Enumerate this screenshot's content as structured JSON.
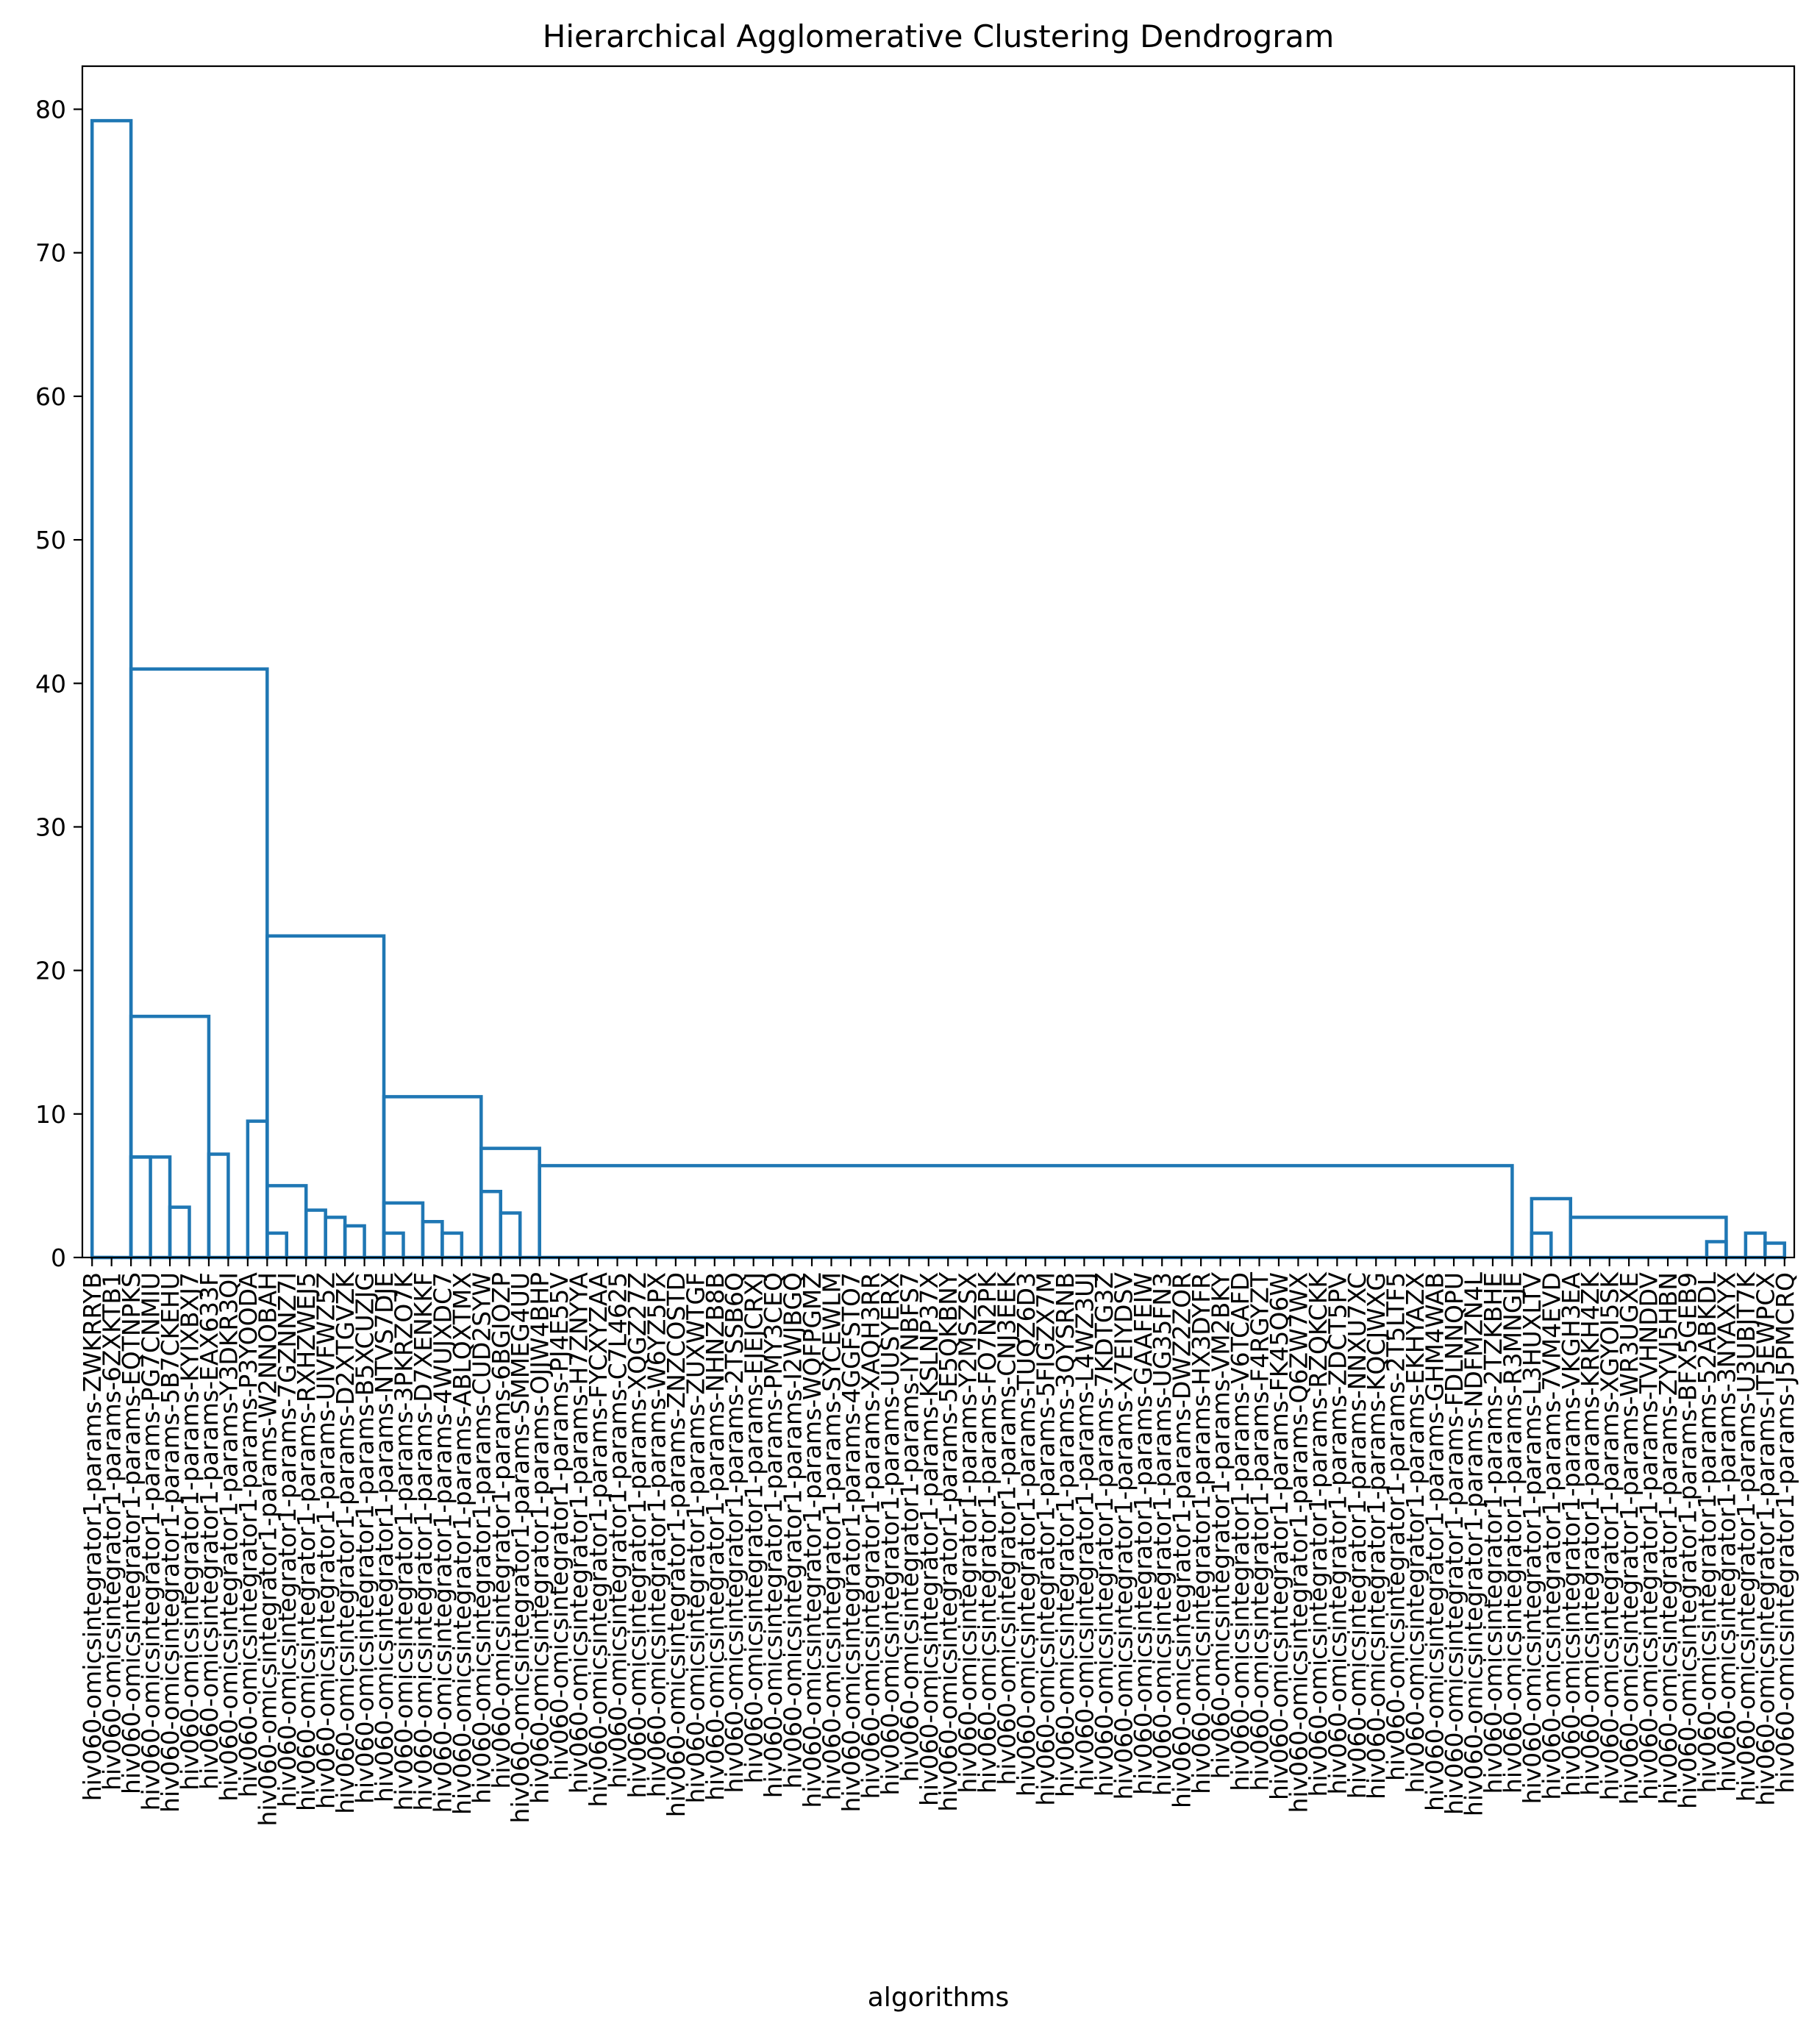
{
  "chart_data": {
    "type": "dendrogram",
    "title": "Hierarchical Agglomerative Clustering Dendrogram",
    "xlabel": "algorithms",
    "ylabel": "",
    "ylim": [
      0,
      83
    ],
    "yticks": [
      0,
      10,
      20,
      30,
      40,
      50,
      60,
      70,
      80
    ],
    "grid": false,
    "link_color": "#1f77b4",
    "leaves": [
      "hiv060-omicsintegrator1-params-ZWKRRYB",
      "hiv060-omicsintegrator1-params-6ZXKTB1",
      "hiv060-omicsintegrator1-params-EQTNPKS",
      "hiv060-omicsintegrator1-params-PG7CNMIU",
      "hiv060-omicsintegrator1-params-5B7CKEHU",
      "hiv060-omicsintegrator1-params-KYIXBXJ7",
      "hiv060-omicsintegrator1-params-EAX633F",
      "hiv060-omicsintegrator1-params-Y3DKR3QI",
      "hiv060-omicsintegrator1-params-P3YOODA",
      "hiv060-omicsintegrator1-params-W2NNOBAH",
      "hiv060-omicsintegrator1-params-7GZNNZ7I",
      "hiv060-omicsintegrator1-params-RXHZWEJ5",
      "hiv060-omicsintegrator1-params-UIVFWZ5Z",
      "hiv060-omicsintegrator1-params-D2XTGVZK",
      "hiv060-omicsintegrator1-params-B5XCUZJG",
      "hiv060-omicsintegrator1-params-NTVS7DJE",
      "hiv060-omicsintegrator1-params-3PKRZO7K",
      "hiv060-omicsintegrator1-params-D7XENKKF",
      "hiv060-omicsintegrator1-params-4WUJXDC7",
      "hiv060-omicsintegrator1-params-ABLQXTMX",
      "hiv060-omicsintegrator1-params-CUD2SYW",
      "hiv060-omicsintegrator1-params-6BGIOZP",
      "hiv060-omicsintegrator1-params-SMMEG4UU",
      "hiv060-omicsintegrator1-params-OJJW4BHP",
      "hiv060-omicsintegrator1-params-PJ4E55V",
      "hiv060-omicsintegrator1-params-H7ZNYYA",
      "hiv060-omicsintegrator1-params-FYCXYZAA",
      "hiv060-omicsintegrator1-params-C7L4625",
      "hiv060-omicsintegrator1-params-XQGZ27Z",
      "hiv060-omicsintegrator1-params-W6YZ5PX",
      "hiv060-omicsintegrator1-params-ZNZCOSTD",
      "hiv060-omicsintegrator1-params-ZUXWTGF",
      "hiv060-omicsintegrator1-params-NHNZB8B",
      "hiv060-omicsintegrator1-params-2TSSB6Q",
      "hiv060-omicsintegrator1-params-EJEJCRXJ",
      "hiv060-omicsintegrator1-params-PMY3CEQ",
      "hiv060-omicsintegrator1-params-I2WJBGQ",
      "hiv060-omicsintegrator1-params-WQFPGMZ",
      "hiv060-omicsintegrator1-params-SYCEWLM",
      "hiv060-omicsintegrator1-params-4GGFSTO7",
      "hiv060-omicsintegrator1-params-XAQH3RR",
      "hiv060-omicsintegrator1-params-UUSYERX",
      "hiv060-omicsintegrator1-params-IYNBFS7",
      "hiv060-omicsintegrator1-params-KSLNP37X",
      "hiv060-omicsintegrator1-params-5E5QKBNY",
      "hiv060-omicsintegrator1-params-Y2MSZSX",
      "hiv060-omicsintegrator1-params-FO7N2PK",
      "hiv060-omicsintegrator1-params-CNJ3EEK",
      "hiv060-omicsintegrator1-params-TUQZ6D3",
      "hiv060-omicsintegrator1-params-5FIGZX7M",
      "hiv060-omicsintegrator1-params-3QYSRNB",
      "hiv060-omicsintegrator1-params-L4WZ3UJ",
      "hiv060-omicsintegrator1-params-7KDTG3Z",
      "hiv060-omicsintegrator1-params-X7EIYDSV",
      "hiv060-omicsintegrator1-params-GAAFEIW",
      "hiv060-omicsintegrator1-params-UG35FN3",
      "hiv060-omicsintegrator1-params-DWZ2ZOR",
      "hiv060-omicsintegrator1-params-HX3DYFR",
      "hiv060-omicsintegrator1-params-VM2BKY",
      "hiv060-omicsintegrator1-params-V6TCAFD",
      "hiv060-omicsintegrator1-params-F4RGYZT",
      "hiv060-omicsintegrator1-params-FK45Q6W",
      "hiv060-omicsintegrator1-params-Q6ZW7WX",
      "hiv060-omicsintegrator1-params-RZQKCKK",
      "hiv060-omicsintegrator1-params-ZDCT5PV",
      "hiv060-omicsintegrator1-params-NNXU7XC",
      "hiv060-omicsintegrator1-params-KQCJWXG",
      "hiv060-omicsintegrator1-params-2T5LTF5",
      "hiv060-omicsintegrator1-params-EKHYAZX",
      "hiv060-omicsintegrator1-params-GHM4WAB",
      "hiv060-omicsintegrator1-params-FDLNNQPU",
      "hiv060-omicsintegrator1-params-NDFMZN4L",
      "hiv060-omicsintegrator1-params-2TZKBHE",
      "hiv060-omicsintegrator1-params-R3MNGJE",
      "hiv060-omicsintegrator1-params-L3HUXLTV",
      "hiv060-omicsintegrator1-params-7VM4EVD",
      "hiv060-omicsintegrator1-params-VKGH3EA",
      "hiv060-omicsintegrator1-params-KRKH4ZK",
      "hiv060-omicsintegrator1-params-XGYOI5SK",
      "hiv060-omicsintegrator1-params-WR3UGXE",
      "hiv060-omicsintegrator1-params-TVHNDDV",
      "hiv060-omicsintegrator1-params-ZYVJ5HBN",
      "hiv060-omicsintegrator1-params-BFX5GEB9",
      "hiv060-omicsintegrator1-params-52ABKDL",
      "hiv060-omicsintegrator1-params-3NYAXYX",
      "hiv060-omicsintegrator1-params-U3UBJT7K",
      "hiv060-omicsintegrator1-params-IT5EWPCX",
      "hiv060-omicsintegrator1-params-J5PMCRQ"
    ],
    "merges": [
      {
        "left": 0,
        "right": 1,
        "height": 0
      },
      {
        "left": 2,
        "right": 3,
        "height": 7.0
      },
      {
        "left": 4,
        "right": 5,
        "height": 3.5
      },
      {
        "left": 2,
        "right": 4,
        "height": 7.0
      },
      {
        "left": 6,
        "right": 7,
        "height": 7.2
      },
      {
        "left": 8,
        "right": 9,
        "height": 9.5
      },
      {
        "left": 2,
        "right": 6,
        "height": 16.8
      },
      {
        "left": 0,
        "right": 2,
        "height": 79.2
      },
      {
        "left": 9,
        "right": 10,
        "height": 1.7
      },
      {
        "left": 11,
        "right": 12,
        "height": 3.3
      },
      {
        "left": 12,
        "right": 13,
        "height": 2.8
      },
      {
        "left": 13,
        "right": 14,
        "height": 2.2
      },
      {
        "left": 9,
        "right": 11,
        "height": 5.0
      },
      {
        "left": 15,
        "right": 16,
        "height": 1.7
      },
      {
        "left": 17,
        "right": 18,
        "height": 2.5
      },
      {
        "left": 18,
        "right": 19,
        "height": 1.7
      },
      {
        "left": 15,
        "right": 17,
        "height": 3.8
      },
      {
        "left": 20,
        "right": 21,
        "height": 4.6
      },
      {
        "left": 21,
        "right": 22,
        "height": 3.1
      },
      {
        "left": 23,
        "right": 73,
        "height": 6.4
      },
      {
        "left": 74,
        "right": 75,
        "height": 1.7
      },
      {
        "left": 76,
        "right": 84,
        "height": 2.8
      },
      {
        "left": 83,
        "right": 84,
        "height": 1.1
      },
      {
        "left": 85,
        "right": 86,
        "height": 1.7
      },
      {
        "left": 86,
        "right": 87,
        "height": 1.0
      },
      {
        "left": 74,
        "right": 76,
        "height": 4.1
      },
      {
        "left": 20,
        "right": 23,
        "height": 7.6
      },
      {
        "left": 15,
        "right": 20,
        "height": 11.2
      },
      {
        "left": 9,
        "right": 15,
        "height": 22.4
      },
      {
        "left": 2,
        "right": 9,
        "height": 41.0
      }
    ]
  }
}
